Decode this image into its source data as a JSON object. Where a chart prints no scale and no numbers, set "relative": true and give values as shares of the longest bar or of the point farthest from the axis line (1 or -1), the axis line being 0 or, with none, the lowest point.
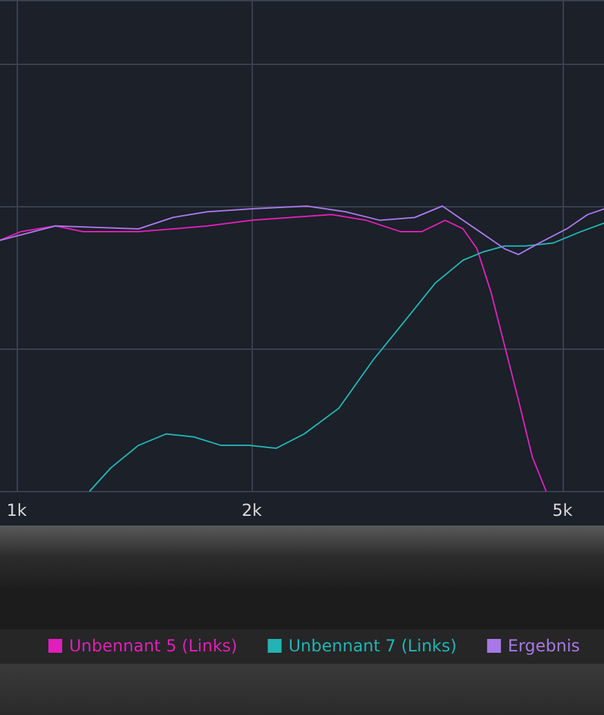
{
  "chart_data": {
    "type": "line",
    "relative": true,
    "log": "x",
    "grid": true,
    "legend": "bottom",
    "marker": "none",
    "line_style": "solid",
    "xlim": [
      952,
      5652
    ],
    "xticks": [
      {
        "value": 1000,
        "label": "1k"
      },
      {
        "value": 2000,
        "label": "2k"
      },
      {
        "value": 5000,
        "label": "5k"
      }
    ],
    "series": [
      {
        "name": "Unbennant 5 (Links)",
        "color": "#e020b8",
        "x": [
          952,
          1012,
          1121,
          1216,
          1432,
          1585,
          1755,
          2000,
          2241,
          2532,
          2804,
          3105,
          3300,
          3538,
          3730,
          3886,
          4048,
          4216,
          4391,
          4574,
          4764
        ],
        "values": [
          0.88,
          0.91,
          0.93,
          0.91,
          0.91,
          0.92,
          0.93,
          0.95,
          0.96,
          0.97,
          0.95,
          0.91,
          0.91,
          0.95,
          0.92,
          0.85,
          0.7,
          0.51,
          0.32,
          0.12,
          0
        ]
      },
      {
        "name": "Unbennant 7 (Links)",
        "color": "#22b4b4",
        "x": [
          1241,
          1319,
          1432,
          1553,
          1685,
          1827,
          1984,
          2151,
          2334,
          2585,
          2862,
          3105,
          3438,
          3730,
          3966,
          4216,
          4481,
          4861,
          5275,
          5652
        ],
        "values": [
          0,
          0.08,
          0.16,
          0.2,
          0.19,
          0.16,
          0.16,
          0.15,
          0.2,
          0.29,
          0.46,
          0.58,
          0.73,
          0.81,
          0.84,
          0.86,
          0.86,
          0.87,
          0.91,
          0.94
        ]
      },
      {
        "name": "Ergebnis",
        "color": "#a878e8",
        "x": [
          952,
          1121,
          1432,
          1585,
          1755,
          2000,
          2353,
          2638,
          2921,
          3234,
          3509,
          3730,
          3966,
          4216,
          4391,
          4667,
          5064,
          5383,
          5652
        ],
        "values": [
          0.88,
          0.93,
          0.92,
          0.96,
          0.98,
          0.99,
          1,
          0.98,
          0.95,
          0.96,
          1,
          0.95,
          0.9,
          0.85,
          0.83,
          0.87,
          0.92,
          0.97,
          0.99
        ]
      }
    ]
  }
}
